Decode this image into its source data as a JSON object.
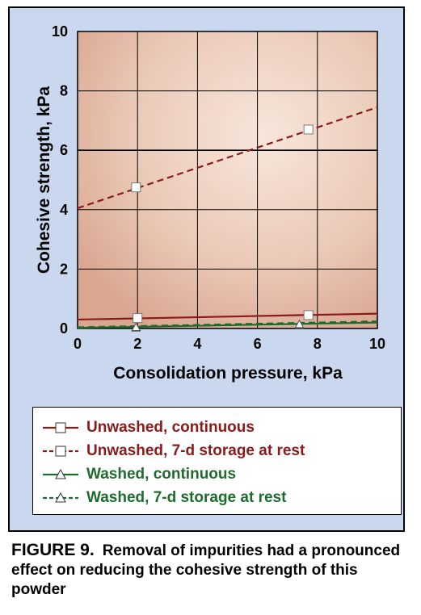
{
  "chart_data": {
    "type": "line",
    "xlabel": "Consolidation pressure, kPa",
    "ylabel": "Cohesive strength, kPa",
    "xlim": [
      0,
      10
    ],
    "ylim": [
      0,
      10
    ],
    "x_ticks": [
      "0",
      "2",
      "4",
      "6",
      "8",
      "10"
    ],
    "y_ticks": [
      "0",
      "2",
      "4",
      "6",
      "8",
      "10"
    ],
    "grid": true,
    "legend_position": "below",
    "series": [
      {
        "name": "Unwashed, continuous",
        "color": "#8b1a1a",
        "line_style": "solid",
        "marker": "square",
        "points": [
          [
            2.0,
            0.35
          ],
          [
            7.7,
            0.45
          ]
        ],
        "fit_line": [
          [
            0,
            0.3
          ],
          [
            10,
            0.5
          ]
        ]
      },
      {
        "name": "Unwashed, 7-d storage at rest",
        "color": "#8b1a1a",
        "line_style": "dashed",
        "marker": "square",
        "points": [
          [
            1.95,
            4.75
          ],
          [
            7.7,
            6.7
          ]
        ],
        "fit_line": [
          [
            0,
            4.05
          ],
          [
            10,
            7.45
          ]
        ]
      },
      {
        "name": "Washed, continuous",
        "color": "#1e6b2e",
        "line_style": "solid",
        "marker": "triangle",
        "points": [
          [
            1.95,
            0.02
          ],
          [
            7.4,
            0.12
          ]
        ],
        "fit_line": [
          [
            0,
            0.02
          ],
          [
            10,
            0.2
          ]
        ]
      },
      {
        "name": "Washed, 7-d storage at rest",
        "color": "#1e6b2e",
        "line_style": "dashed",
        "marker": "triangle",
        "points": [
          [
            1.95,
            0.04
          ],
          [
            7.4,
            0.14
          ]
        ],
        "fit_line": [
          [
            0,
            0.04
          ],
          [
            10,
            0.24
          ]
        ]
      }
    ]
  },
  "caption": {
    "figure_label": "FIGURE 9.",
    "text": "Removal of impurities had a pronounced effect on reducing the cohesive strength of this powder"
  }
}
